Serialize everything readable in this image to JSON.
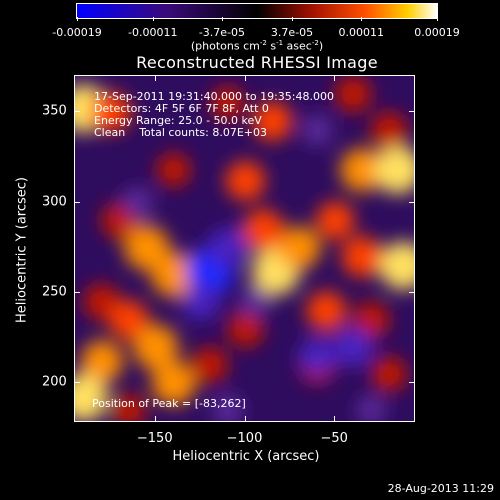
{
  "colorbar": {
    "tick_labels": [
      "-0.00019",
      "-0.00011",
      "-3.7e-05",
      "3.7e-05",
      "0.00011",
      "0.00019"
    ],
    "tick_values": [
      -0.00019,
      -0.00011,
      -3.7e-05,
      3.7e-05,
      0.00011,
      0.00019
    ],
    "range": [
      -0.00019,
      0.00019
    ],
    "units_main": "(photons cm",
    "units_exp1": "-2",
    "units_mid1": " s",
    "units_exp2": "-1",
    "units_mid2": " asec",
    "units_exp3": "-2",
    "units_end": ")",
    "colors": [
      "#0000ff",
      "#3a0a7a",
      "#000000",
      "#a01000",
      "#ff5000",
      "#ffd000",
      "#ffffff"
    ]
  },
  "chart_data": {
    "type": "heatmap",
    "title": "Reconstructed RHESSI Image",
    "xlabel": "Heliocentric X (arcsec)",
    "ylabel": "Heliocentric Y (arcsec)",
    "xlim": [
      -195,
      -5
    ],
    "ylim": [
      178,
      370
    ],
    "xticks": [
      -150,
      -100,
      -50
    ],
    "yticks": [
      200,
      250,
      300,
      350
    ],
    "info_lines": [
      "17-Sep-2011 19:31:40.000 to 19:35:48.000",
      "Detectors: 4F 5F 6F 7F 8F, Att 0",
      "Energy Range: 25.0 - 50.0 keV",
      "Clean    Total counts: 8.07E+03"
    ],
    "peak_label": "Position of Peak = [-83,262]",
    "peak_position": [
      -83,
      262
    ],
    "blobs": [
      {
        "x": -190,
        "y": 352,
        "v": 1.0
      },
      {
        "x": -175,
        "y": 350,
        "v": 0.7
      },
      {
        "x": -110,
        "y": 355,
        "v": 0.5
      },
      {
        "x": -85,
        "y": 345,
        "v": 0.7
      },
      {
        "x": -40,
        "y": 360,
        "v": 0.6
      },
      {
        "x": -20,
        "y": 340,
        "v": 0.6
      },
      {
        "x": -35,
        "y": 318,
        "v": 0.85
      },
      {
        "x": -15,
        "y": 318,
        "v": 1.0
      },
      {
        "x": -140,
        "y": 318,
        "v": 0.5
      },
      {
        "x": -100,
        "y": 312,
        "v": 0.7
      },
      {
        "x": -170,
        "y": 290,
        "v": 0.6
      },
      {
        "x": -155,
        "y": 275,
        "v": 0.9
      },
      {
        "x": -140,
        "y": 260,
        "v": 0.9
      },
      {
        "x": -90,
        "y": 285,
        "v": 0.75
      },
      {
        "x": -83,
        "y": 262,
        "v": 1.0
      },
      {
        "x": -70,
        "y": 275,
        "v": 0.8
      },
      {
        "x": -50,
        "y": 290,
        "v": 0.65
      },
      {
        "x": -35,
        "y": 270,
        "v": 0.75
      },
      {
        "x": -12,
        "y": 265,
        "v": 1.0
      },
      {
        "x": -180,
        "y": 245,
        "v": 0.6
      },
      {
        "x": -165,
        "y": 235,
        "v": 0.7
      },
      {
        "x": -100,
        "y": 230,
        "v": 0.6
      },
      {
        "x": -55,
        "y": 240,
        "v": 0.7
      },
      {
        "x": -30,
        "y": 235,
        "v": 0.6
      },
      {
        "x": -180,
        "y": 212,
        "v": 0.8
      },
      {
        "x": -150,
        "y": 220,
        "v": 0.9
      },
      {
        "x": -140,
        "y": 200,
        "v": 0.85
      },
      {
        "x": -120,
        "y": 210,
        "v": 0.6
      },
      {
        "x": -60,
        "y": 210,
        "v": 0.6
      },
      {
        "x": -20,
        "y": 205,
        "v": 0.55
      },
      {
        "x": -190,
        "y": 192,
        "v": 1.0
      },
      {
        "x": -165,
        "y": 185,
        "v": 0.5
      },
      {
        "x": -120,
        "y": 262,
        "v": -1.0
      },
      {
        "x": -110,
        "y": 275,
        "v": -0.7
      },
      {
        "x": -125,
        "y": 245,
        "v": -0.6
      },
      {
        "x": -95,
        "y": 245,
        "v": -0.4
      },
      {
        "x": -60,
        "y": 215,
        "v": -0.6
      },
      {
        "x": -40,
        "y": 220,
        "v": -0.7
      },
      {
        "x": -160,
        "y": 300,
        "v": -0.4
      },
      {
        "x": -60,
        "y": 340,
        "v": -0.4
      },
      {
        "x": -110,
        "y": 185,
        "v": -0.4
      },
      {
        "x": -30,
        "y": 185,
        "v": -0.35
      }
    ]
  },
  "timestamp": "28-Aug-2013 11:29"
}
